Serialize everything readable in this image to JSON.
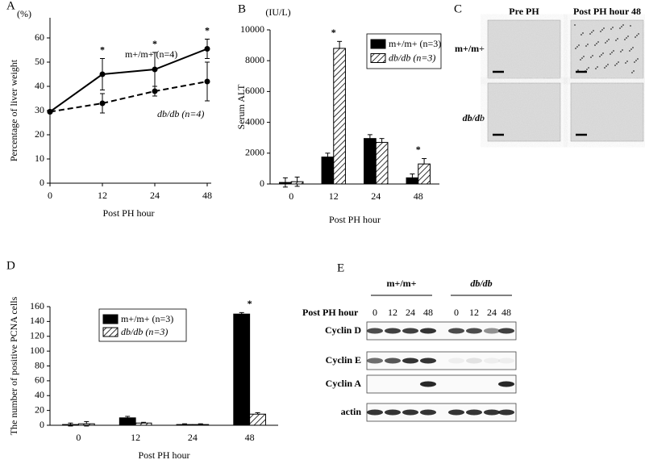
{
  "chart_data": [
    {
      "type": "line",
      "panel": "A",
      "ylabel": "Percentage of liver weight",
      "yunit": "(%)",
      "xlabel": "Post PH hour",
      "categories": [
        "0",
        "12",
        "24",
        "48"
      ],
      "series": [
        {
          "name": "m+/m+  (n=4)",
          "color": "#000000",
          "dash": false,
          "values": [
            29.5,
            45,
            47,
            55.5
          ],
          "errors": [
            0,
            6.5,
            7,
            4
          ]
        },
        {
          "name": "db/db (n=4)",
          "color": "#000000",
          "dash": true,
          "values": [
            29.5,
            33,
            38,
            42
          ],
          "errors": [
            0,
            4,
            2,
            8
          ]
        }
      ],
      "annotations": [
        {
          "text": "*",
          "x": "12"
        },
        {
          "text": "*",
          "x": "24"
        },
        {
          "text": "*",
          "x": "48"
        }
      ],
      "ylim": [
        0,
        60
      ],
      "yticks": [
        0,
        10,
        20,
        30,
        40,
        50,
        60
      ],
      "legend": "inline"
    },
    {
      "type": "bar",
      "panel": "B",
      "ylabel": "Serum ALT",
      "yunit": "(IU/L)",
      "xlabel": "Post PH hour",
      "categories": [
        "0",
        "12",
        "24",
        "48"
      ],
      "series": [
        {
          "name": "m+/m+ (n=3)",
          "color": "#000000",
          "pattern": "solid",
          "values": [
            100,
            1750,
            2950,
            400
          ],
          "errors": [
            300,
            250,
            250,
            250
          ]
        },
        {
          "name": "db/db (n=3)",
          "color": "#000000",
          "pattern": "hatch",
          "values": [
            150,
            8800,
            2700,
            1300
          ],
          "errors": [
            300,
            450,
            250,
            350
          ]
        }
      ],
      "annotations": [
        {
          "text": "*",
          "x": "12"
        },
        {
          "text": "*",
          "x": "48"
        }
      ],
      "ylim": [
        0,
        10000
      ],
      "yticks": [
        0,
        2000,
        4000,
        6000,
        8000,
        10000
      ],
      "legend": "upper right"
    },
    {
      "type": "bar",
      "panel": "D",
      "ylabel": "The number of positive PCNA cells",
      "xlabel": "Post PH hour",
      "categories": [
        "0",
        "12",
        "24",
        "48"
      ],
      "series": [
        {
          "name": "m+/m+ (n=3)",
          "color": "#000000",
          "pattern": "solid",
          "values": [
            1,
            10,
            1,
            150
          ],
          "errors": [
            2,
            2,
            1,
            2
          ]
        },
        {
          "name": "db/db (n=3)",
          "color": "#000000",
          "pattern": "hatch",
          "values": [
            2,
            3,
            1,
            15
          ],
          "errors": [
            3,
            1,
            1,
            2
          ]
        }
      ],
      "annotations": [
        {
          "text": "*",
          "x": "48"
        }
      ],
      "ylim": [
        0,
        160
      ],
      "yticks": [
        0,
        20,
        40,
        60,
        80,
        100,
        120,
        140,
        160
      ],
      "legend": "upper left"
    }
  ],
  "micrographs": {
    "panel": "C",
    "columns": [
      "Pre PH",
      "Post PH hour 48"
    ],
    "rows": [
      "m+/m+",
      "db/db"
    ]
  },
  "blot": {
    "panel": "E",
    "lane_header": "Post PH hour",
    "groups": [
      {
        "name": "m+/m+",
        "lanes": [
          "0",
          "12",
          "24",
          "48"
        ]
      },
      {
        "name": "db/db",
        "lanes": [
          "0",
          "12",
          "24",
          "48"
        ]
      }
    ],
    "rows": [
      "Cyclin D",
      "Cyclin E",
      "Cyclin A",
      "actin"
    ]
  }
}
